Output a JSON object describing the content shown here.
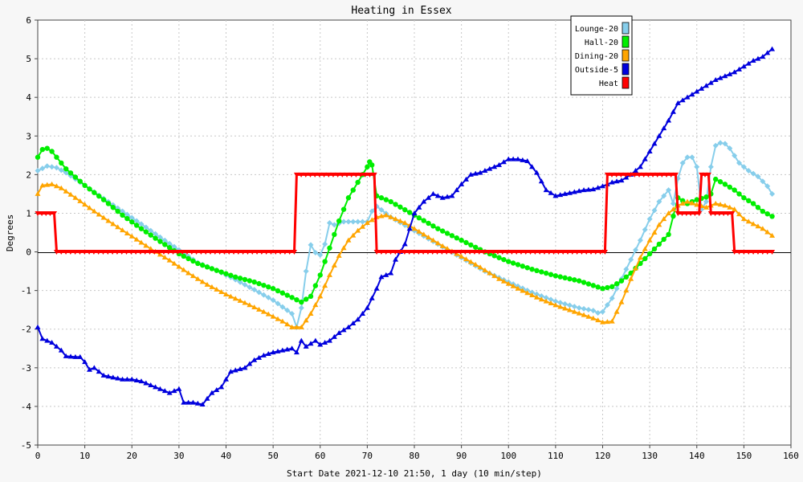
{
  "chart_data": {
    "type": "line",
    "title": "Heating in Essex",
    "xlabel": "Start Date 2021-12-10 21:50, 1 day (10 min/step)",
    "ylabel": "Degrees",
    "xlim": [
      0,
      160
    ],
    "ylim": [
      -5,
      6
    ],
    "x_ticks": [
      0,
      10,
      20,
      30,
      40,
      50,
      60,
      70,
      80,
      90,
      100,
      110,
      120,
      130,
      140,
      150,
      160
    ],
    "y_ticks": [
      -5,
      -4,
      -3,
      -2,
      -1,
      0,
      1,
      2,
      3,
      4,
      5,
      6
    ],
    "grid": true,
    "legend_position": "top-right",
    "series": [
      {
        "name": "Lounge-20",
        "color": "#87ceeb",
        "marker": "diamond",
        "points": [
          [
            0,
            2.1
          ],
          [
            2,
            2.22
          ],
          [
            4,
            2.18
          ],
          [
            6,
            2.05
          ],
          [
            10,
            1.72
          ],
          [
            14,
            1.38
          ],
          [
            18,
            1.05
          ],
          [
            22,
            0.72
          ],
          [
            26,
            0.38
          ],
          [
            30,
            0.05
          ],
          [
            34,
            -0.28
          ],
          [
            38,
            -0.48
          ],
          [
            42,
            -0.72
          ],
          [
            46,
            -0.98
          ],
          [
            50,
            -1.25
          ],
          [
            54,
            -1.6
          ],
          [
            55,
            -1.95
          ],
          [
            56,
            -1.45
          ],
          [
            57,
            -0.5
          ],
          [
            58,
            0.18
          ],
          [
            59,
            -0.02
          ],
          [
            60,
            -0.08
          ],
          [
            61,
            0.2
          ],
          [
            62,
            0.75
          ],
          [
            63,
            0.7
          ],
          [
            65,
            0.78
          ],
          [
            70,
            0.78
          ],
          [
            71,
            1.05
          ],
          [
            72,
            1.18
          ],
          [
            75,
            0.9
          ],
          [
            80,
            0.55
          ],
          [
            85,
            0.2
          ],
          [
            90,
            -0.15
          ],
          [
            95,
            -0.5
          ],
          [
            100,
            -0.78
          ],
          [
            105,
            -1.05
          ],
          [
            110,
            -1.28
          ],
          [
            115,
            -1.45
          ],
          [
            118,
            -1.52
          ],
          [
            119,
            -1.58
          ],
          [
            120,
            -1.55
          ],
          [
            122,
            -1.2
          ],
          [
            124,
            -0.7
          ],
          [
            126,
            -0.2
          ],
          [
            128,
            0.3
          ],
          [
            130,
            0.85
          ],
          [
            132,
            1.3
          ],
          [
            134,
            1.6
          ],
          [
            135,
            1.25
          ],
          [
            136,
            1.9
          ],
          [
            137,
            2.3
          ],
          [
            138,
            2.45
          ],
          [
            139,
            2.45
          ],
          [
            140,
            2.2
          ],
          [
            141,
            1.1
          ],
          [
            142,
            1.3
          ],
          [
            143,
            2.2
          ],
          [
            144,
            2.75
          ],
          [
            145,
            2.82
          ],
          [
            146,
            2.8
          ],
          [
            147,
            2.68
          ],
          [
            149,
            2.3
          ],
          [
            151,
            2.1
          ],
          [
            153,
            1.95
          ],
          [
            155,
            1.7
          ],
          [
            156,
            1.5
          ]
        ]
      },
      {
        "name": "Hall-20",
        "color": "#00ee00",
        "marker": "circle",
        "points": [
          [
            0,
            2.45
          ],
          [
            1,
            2.65
          ],
          [
            2,
            2.68
          ],
          [
            3,
            2.6
          ],
          [
            4,
            2.45
          ],
          [
            6,
            2.15
          ],
          [
            10,
            1.72
          ],
          [
            14,
            1.35
          ],
          [
            18,
            0.95
          ],
          [
            22,
            0.6
          ],
          [
            26,
            0.27
          ],
          [
            30,
            -0.05
          ],
          [
            34,
            -0.3
          ],
          [
            38,
            -0.48
          ],
          [
            42,
            -0.65
          ],
          [
            46,
            -0.78
          ],
          [
            50,
            -0.95
          ],
          [
            54,
            -1.18
          ],
          [
            56,
            -1.3
          ],
          [
            58,
            -1.15
          ],
          [
            60,
            -0.6
          ],
          [
            62,
            0.1
          ],
          [
            64,
            0.8
          ],
          [
            66,
            1.4
          ],
          [
            68,
            1.8
          ],
          [
            70,
            2.2
          ],
          [
            70.5,
            2.33
          ],
          [
            71,
            2.25
          ],
          [
            72,
            1.45
          ],
          [
            75,
            1.3
          ],
          [
            80,
            0.95
          ],
          [
            85,
            0.6
          ],
          [
            90,
            0.3
          ],
          [
            95,
            0.0
          ],
          [
            100,
            -0.25
          ],
          [
            105,
            -0.45
          ],
          [
            110,
            -0.62
          ],
          [
            115,
            -0.75
          ],
          [
            120,
            -0.95
          ],
          [
            122,
            -0.9
          ],
          [
            124,
            -0.75
          ],
          [
            126,
            -0.55
          ],
          [
            128,
            -0.3
          ],
          [
            130,
            -0.05
          ],
          [
            132,
            0.2
          ],
          [
            134,
            0.45
          ],
          [
            136,
            1.4
          ],
          [
            138,
            1.25
          ],
          [
            140,
            1.35
          ],
          [
            142,
            1.42
          ],
          [
            143,
            1.5
          ],
          [
            144,
            1.88
          ],
          [
            146,
            1.75
          ],
          [
            148,
            1.6
          ],
          [
            150,
            1.4
          ],
          [
            152,
            1.25
          ],
          [
            154,
            1.05
          ],
          [
            156,
            0.92
          ]
        ]
      },
      {
        "name": "Dining-20",
        "color": "#ffa500",
        "marker": "triangle",
        "points": [
          [
            0,
            1.5
          ],
          [
            1,
            1.72
          ],
          [
            3,
            1.75
          ],
          [
            5,
            1.65
          ],
          [
            8,
            1.4
          ],
          [
            12,
            1.05
          ],
          [
            16,
            0.72
          ],
          [
            20,
            0.4
          ],
          [
            24,
            0.08
          ],
          [
            28,
            -0.22
          ],
          [
            32,
            -0.55
          ],
          [
            36,
            -0.85
          ],
          [
            40,
            -1.1
          ],
          [
            44,
            -1.32
          ],
          [
            48,
            -1.55
          ],
          [
            52,
            -1.8
          ],
          [
            54,
            -1.95
          ],
          [
            56,
            -1.95
          ],
          [
            58,
            -1.6
          ],
          [
            60,
            -1.15
          ],
          [
            62,
            -0.6
          ],
          [
            64,
            -0.1
          ],
          [
            66,
            0.3
          ],
          [
            68,
            0.55
          ],
          [
            70,
            0.75
          ],
          [
            72,
            0.9
          ],
          [
            74,
            0.95
          ],
          [
            78,
            0.75
          ],
          [
            82,
            0.45
          ],
          [
            86,
            0.15
          ],
          [
            90,
            -0.12
          ],
          [
            94,
            -0.4
          ],
          [
            98,
            -0.7
          ],
          [
            102,
            -0.95
          ],
          [
            106,
            -1.18
          ],
          [
            110,
            -1.38
          ],
          [
            114,
            -1.55
          ],
          [
            118,
            -1.72
          ],
          [
            120,
            -1.82
          ],
          [
            122,
            -1.8
          ],
          [
            124,
            -1.3
          ],
          [
            126,
            -0.7
          ],
          [
            128,
            -0.15
          ],
          [
            130,
            0.3
          ],
          [
            132,
            0.7
          ],
          [
            134,
            1.0
          ],
          [
            136,
            1.2
          ],
          [
            138,
            1.3
          ],
          [
            140,
            1.22
          ],
          [
            142,
            1.15
          ],
          [
            144,
            1.25
          ],
          [
            146,
            1.2
          ],
          [
            148,
            1.1
          ],
          [
            150,
            0.85
          ],
          [
            152,
            0.72
          ],
          [
            154,
            0.6
          ],
          [
            156,
            0.42
          ]
        ]
      },
      {
        "name": "Outside-5",
        "color": "#0000dd",
        "marker": "triangle",
        "points": [
          [
            0,
            -1.95
          ],
          [
            1,
            -2.25
          ],
          [
            3,
            -2.35
          ],
          [
            5,
            -2.55
          ],
          [
            6,
            -2.7
          ],
          [
            8,
            -2.72
          ],
          [
            9,
            -2.72
          ],
          [
            10,
            -2.85
          ],
          [
            11,
            -3.05
          ],
          [
            12,
            -3.0
          ],
          [
            14,
            -3.2
          ],
          [
            16,
            -3.25
          ],
          [
            18,
            -3.3
          ],
          [
            20,
            -3.3
          ],
          [
            22,
            -3.35
          ],
          [
            24,
            -3.45
          ],
          [
            26,
            -3.55
          ],
          [
            28,
            -3.65
          ],
          [
            30,
            -3.55
          ],
          [
            31,
            -3.9
          ],
          [
            33,
            -3.9
          ],
          [
            35,
            -3.95
          ],
          [
            37,
            -3.65
          ],
          [
            39,
            -3.5
          ],
          [
            41,
            -3.1
          ],
          [
            44,
            -3.0
          ],
          [
            46,
            -2.8
          ],
          [
            48,
            -2.68
          ],
          [
            50,
            -2.6
          ],
          [
            52,
            -2.55
          ],
          [
            54,
            -2.5
          ],
          [
            55,
            -2.6
          ],
          [
            56,
            -2.3
          ],
          [
            57,
            -2.45
          ],
          [
            59,
            -2.3
          ],
          [
            60,
            -2.4
          ],
          [
            62,
            -2.3
          ],
          [
            64,
            -2.1
          ],
          [
            66,
            -1.95
          ],
          [
            68,
            -1.75
          ],
          [
            70,
            -1.45
          ],
          [
            71,
            -1.2
          ],
          [
            72,
            -0.95
          ],
          [
            73,
            -0.65
          ],
          [
            75,
            -0.55
          ],
          [
            76,
            -0.2
          ],
          [
            78,
            0.2
          ],
          [
            80,
            1.0
          ],
          [
            82,
            1.3
          ],
          [
            84,
            1.5
          ],
          [
            86,
            1.4
          ],
          [
            88,
            1.45
          ],
          [
            90,
            1.75
          ],
          [
            92,
            2.0
          ],
          [
            94,
            2.05
          ],
          [
            96,
            2.15
          ],
          [
            98,
            2.25
          ],
          [
            100,
            2.4
          ],
          [
            102,
            2.4
          ],
          [
            104,
            2.35
          ],
          [
            106,
            2.05
          ],
          [
            108,
            1.6
          ],
          [
            110,
            1.45
          ],
          [
            112,
            1.5
          ],
          [
            114,
            1.55
          ],
          [
            116,
            1.6
          ],
          [
            118,
            1.62
          ],
          [
            120,
            1.7
          ],
          [
            122,
            1.8
          ],
          [
            124,
            1.85
          ],
          [
            126,
            2.0
          ],
          [
            128,
            2.2
          ],
          [
            130,
            2.6
          ],
          [
            132,
            3.0
          ],
          [
            134,
            3.4
          ],
          [
            136,
            3.85
          ],
          [
            138,
            4.0
          ],
          [
            140,
            4.15
          ],
          [
            142,
            4.3
          ],
          [
            144,
            4.45
          ],
          [
            146,
            4.55
          ],
          [
            148,
            4.65
          ],
          [
            150,
            4.8
          ],
          [
            152,
            4.95
          ],
          [
            154,
            5.05
          ],
          [
            156,
            5.25
          ]
        ]
      },
      {
        "name": "Heat",
        "color": "#ff0000",
        "marker": "triangle-down",
        "points": [
          [
            0,
            1.0
          ],
          [
            3.5,
            1.0
          ],
          [
            4,
            0
          ],
          [
            54.5,
            0
          ],
          [
            55,
            2.0
          ],
          [
            71.5,
            2.0
          ],
          [
            72,
            0
          ],
          [
            120.5,
            0
          ],
          [
            121,
            2.0
          ],
          [
            135.5,
            2.0
          ],
          [
            136,
            1.0
          ],
          [
            140.5,
            1.0
          ],
          [
            141,
            2.0
          ],
          [
            142.5,
            2.0
          ],
          [
            143,
            1.0
          ],
          [
            147.5,
            1.0
          ],
          [
            148,
            0
          ],
          [
            156,
            0
          ]
        ]
      }
    ]
  }
}
